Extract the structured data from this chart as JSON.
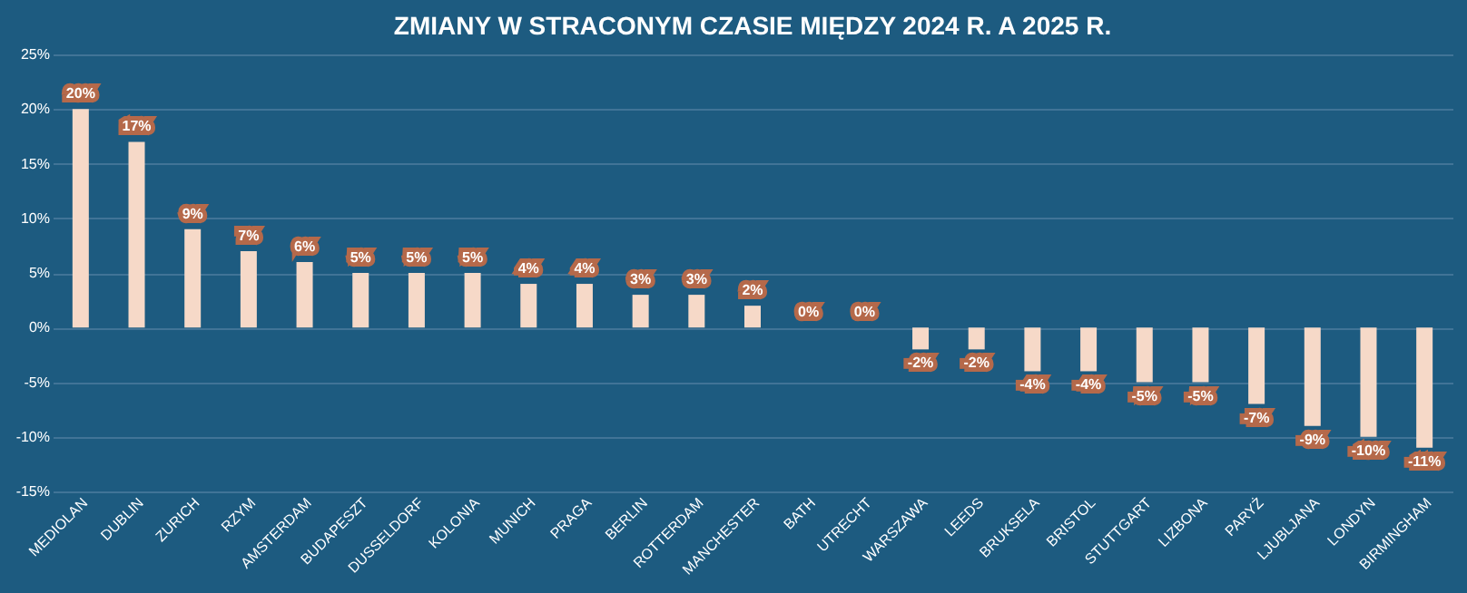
{
  "chart_data": {
    "type": "bar",
    "title": "ZMIANY W STRACONYM CZASIE MIĘDZY 2024 R. A 2025 R.",
    "categories": [
      "MEDIOLAN",
      "DUBLIN",
      "ZURICH",
      "RZYM",
      "AMSTERDAM",
      "BUDAPESZT",
      "DUSSELDORF",
      "KOLONIA",
      "MUNICH",
      "PRAGA",
      "BERLIN",
      "ROTTERDAM",
      "MANCHESTER",
      "BATH",
      "UTRECHT",
      "WARSZAWA",
      "LEEDS",
      "BRUKSELA",
      "BRISTOL",
      "STUTTGART",
      "LIZBONA",
      "PARYŻ",
      "LJUBLJANA",
      "LONDYN",
      "BIRMINGHAM"
    ],
    "values": [
      20,
      17,
      9,
      7,
      6,
      5,
      5,
      5,
      4,
      4,
      3,
      3,
      2,
      0,
      0,
      -2,
      -2,
      -4,
      -4,
      -5,
      -5,
      -7,
      -9,
      -10,
      -11
    ],
    "value_labels": [
      "20%",
      "17%",
      "9%",
      "7%",
      "6%",
      "5%",
      "5%",
      "5%",
      "4%",
      "4%",
      "3%",
      "3%",
      "2%",
      "0%",
      "0%",
      "-2%",
      "-2%",
      "-4%",
      "-4%",
      "-5%",
      "-5%",
      "-7%",
      "-9%",
      "-10%",
      "-11%"
    ],
    "color": "#f6d9c8",
    "ylim": [
      -15,
      25
    ],
    "yticks": [
      {
        "value": -15,
        "label": "-15%"
      },
      {
        "value": -10,
        "label": "-10%"
      },
      {
        "value": -5,
        "label": "-5%"
      },
      {
        "value": 0,
        "label": "0%"
      },
      {
        "value": 5,
        "label": "5%"
      },
      {
        "value": 10,
        "label": "10%"
      },
      {
        "value": 15,
        "label": "15%"
      },
      {
        "value": 20,
        "label": "20%"
      },
      {
        "value": 25,
        "label": "25%"
      }
    ],
    "grid": "y"
  }
}
